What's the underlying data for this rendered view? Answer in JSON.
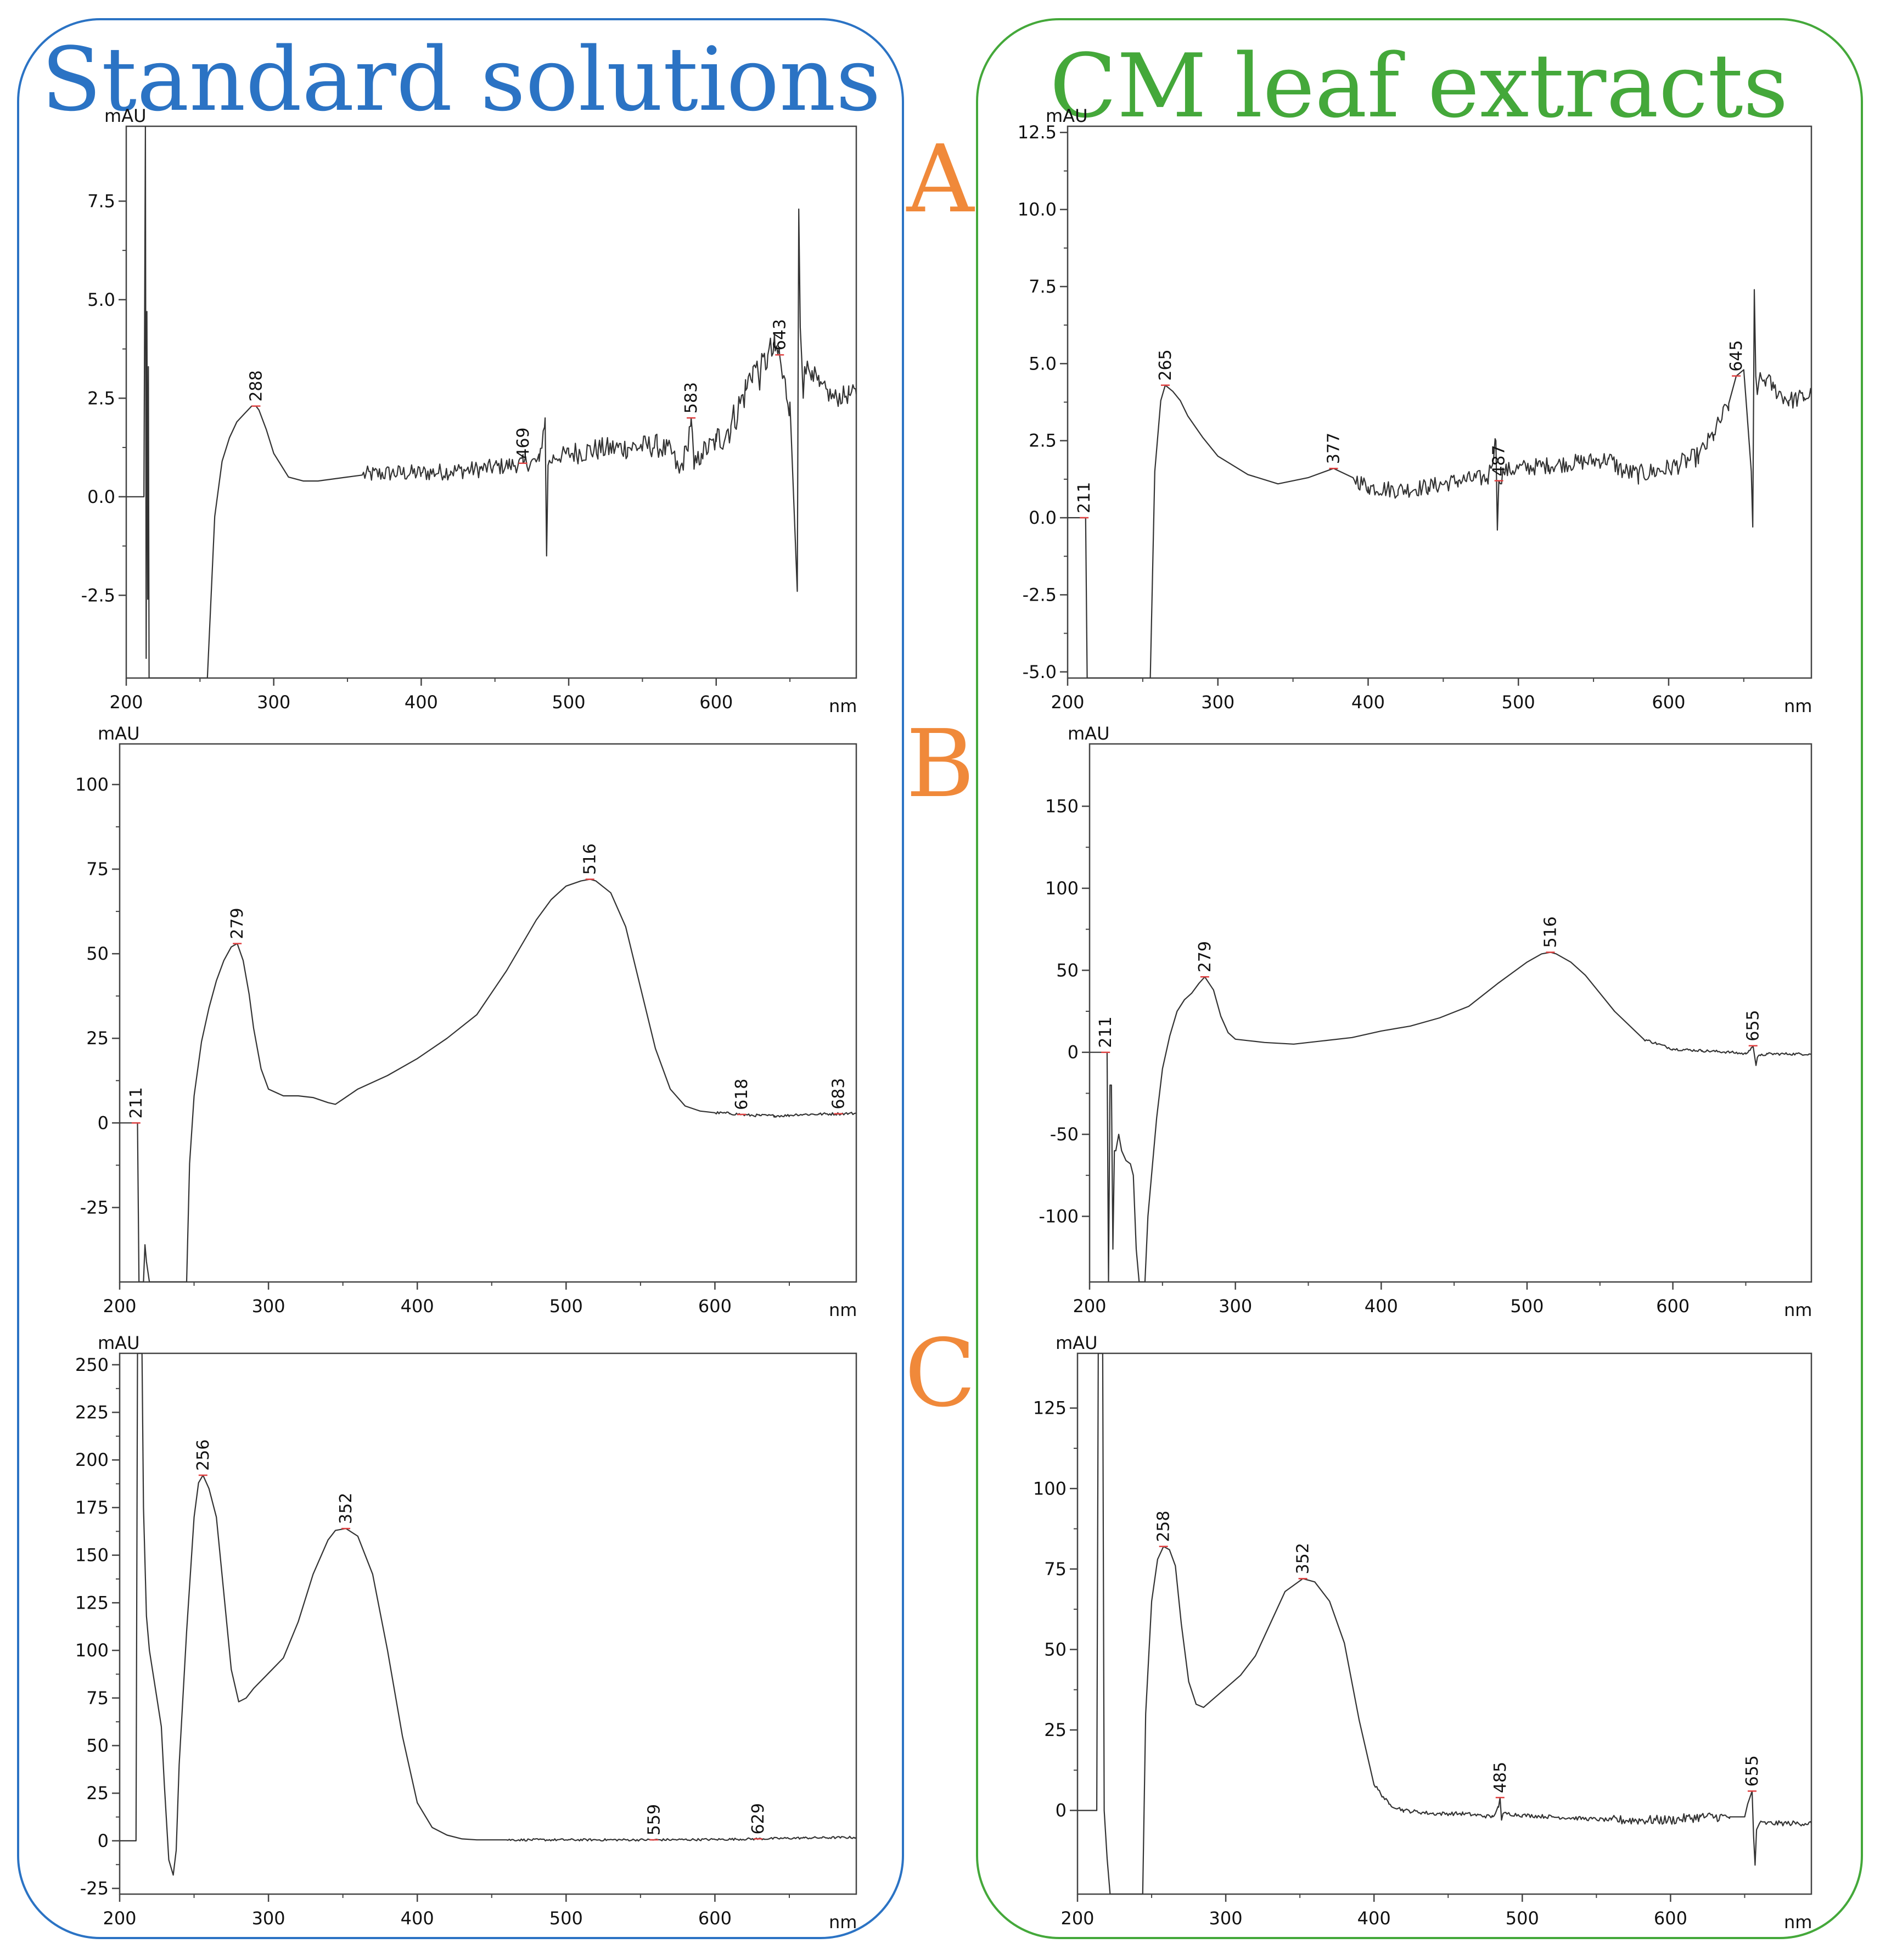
{
  "groups": {
    "left": {
      "title": "Standard solutions",
      "color": "#2b73c4"
    },
    "right": {
      "title": "CM leaf extracts",
      "color": "#44a83a"
    }
  },
  "panel_letters": {
    "items": [
      "A",
      "B",
      "C"
    ],
    "color": "#f0893a"
  },
  "colors": {
    "trace": "#333333",
    "frame": "#444444",
    "baseline_marker": "#e04040"
  },
  "chart_data": [
    {
      "id": "A-left",
      "type": "line",
      "title": "",
      "xlabel": "nm",
      "ylabel": "mAU",
      "xlim": [
        200,
        695
      ],
      "ylim": [
        -4.6,
        9.4
      ],
      "xticks": [
        200,
        300,
        400,
        500,
        600
      ],
      "yticks": [
        -2.5,
        0.0,
        2.5,
        5.0,
        7.5
      ],
      "ytick_decimals": 1,
      "series": [
        {
          "name": "spectrum",
          "x": [
            200,
            212,
            213,
            213.5,
            214,
            214.6,
            215,
            215.5,
            216,
            216.5,
            217,
            220,
            240,
            255,
            260,
            265,
            270,
            275,
            280,
            285,
            288,
            290,
            295,
            300,
            310,
            320,
            330,
            340,
            350,
            360,
            380,
            400,
            420,
            440,
            460,
            469,
            480,
            484,
            485,
            486,
            490,
            500,
            520,
            540,
            560,
            570,
            575,
            580,
            583,
            585,
            590,
            600,
            610,
            620,
            625,
            630,
            635,
            640,
            643,
            645,
            650,
            655,
            656,
            657,
            658,
            659,
            660,
            665,
            670,
            680,
            690,
            695
          ],
          "y": [
            0,
            0,
            9.4,
            -4.1,
            4.7,
            -2.6,
            3.3,
            -4.6,
            -4.6,
            -4.6,
            -4.6,
            -4.6,
            -4.6,
            -4.6,
            -0.5,
            0.9,
            1.5,
            1.9,
            2.1,
            2.3,
            2.3,
            2.2,
            1.7,
            1.1,
            0.5,
            0.4,
            0.4,
            0.45,
            0.5,
            0.55,
            0.6,
            0.6,
            0.65,
            0.7,
            0.8,
            0.85,
            0.9,
            2.0,
            -1.5,
            0.8,
            1.0,
            1.1,
            1.2,
            1.25,
            1.3,
            1.1,
            0.6,
            1.2,
            2.0,
            0.7,
            1.1,
            1.4,
            1.8,
            2.7,
            3.3,
            3.1,
            3.6,
            3.7,
            3.6,
            3.0,
            2.4,
            -2.4,
            7.3,
            4.3,
            3.5,
            2.5,
            3.3,
            3.2,
            2.8,
            2.5,
            2.6,
            2.6
          ]
        }
      ],
      "noise": [
        {
          "from": 360,
          "to": 500,
          "amp": 0.22
        },
        {
          "from": 500,
          "to": 600,
          "amp": 0.3
        },
        {
          "from": 560,
          "to": 650,
          "amp": 0.45
        },
        {
          "from": 660,
          "to": 695,
          "amp": 0.25
        }
      ],
      "peak_labels": [
        {
          "x": 288,
          "y": 2.3,
          "text": "288"
        },
        {
          "x": 469,
          "y": 0.85,
          "text": "469"
        },
        {
          "x": 583,
          "y": 2.0,
          "text": "583"
        },
        {
          "x": 643,
          "y": 3.6,
          "text": "643"
        }
      ]
    },
    {
      "id": "A-right",
      "type": "line",
      "title": "",
      "xlabel": "nm",
      "ylabel": "mAU",
      "xlim": [
        200,
        695
      ],
      "ylim": [
        -5.2,
        12.7
      ],
      "xticks": [
        200,
        300,
        400,
        500,
        600
      ],
      "yticks": [
        -5.0,
        -2.5,
        0.0,
        2.5,
        5.0,
        7.5,
        10.0,
        12.5
      ],
      "ytick_decimals": 1,
      "series": [
        {
          "name": "spectrum",
          "x": [
            200,
            211,
            212,
            213,
            214,
            230,
            250,
            255,
            258,
            262,
            265,
            270,
            275,
            280,
            290,
            300,
            320,
            340,
            360,
            377,
            390,
            400,
            420,
            440,
            460,
            480,
            485,
            486,
            487,
            490,
            500,
            520,
            540,
            560,
            570,
            580,
            600,
            620,
            630,
            640,
            645,
            650,
            652,
            655,
            656,
            657,
            658,
            659,
            660,
            665,
            670,
            680,
            690,
            695
          ],
          "y": [
            0,
            0,
            0,
            -5.2,
            -5.2,
            -5.2,
            -5.2,
            -5.2,
            1.5,
            3.8,
            4.3,
            4.1,
            3.8,
            3.3,
            2.6,
            2.0,
            1.4,
            1.1,
            1.3,
            1.6,
            1.3,
            1.0,
            0.9,
            1.0,
            1.2,
            1.3,
            2.5,
            -0.4,
            1.2,
            1.5,
            1.6,
            1.7,
            1.8,
            1.9,
            1.5,
            1.4,
            1.6,
            2.0,
            2.7,
            3.7,
            4.6,
            4.8,
            3.5,
            1.5,
            -0.3,
            7.4,
            4.6,
            4.0,
            4.4,
            4.5,
            4.2,
            3.8,
            3.9,
            4.0
          ]
        }
      ],
      "noise": [
        {
          "from": 380,
          "to": 560,
          "amp": 0.28
        },
        {
          "from": 560,
          "to": 640,
          "amp": 0.32
        },
        {
          "from": 660,
          "to": 695,
          "amp": 0.3
        }
      ],
      "peak_labels": [
        {
          "x": 211,
          "y": 0.0,
          "text": "211"
        },
        {
          "x": 265,
          "y": 4.3,
          "text": "265"
        },
        {
          "x": 377,
          "y": 1.6,
          "text": "377"
        },
        {
          "x": 487,
          "y": 1.2,
          "text": "487"
        },
        {
          "x": 645,
          "y": 4.6,
          "text": "645"
        }
      ]
    },
    {
      "id": "B-left",
      "type": "line",
      "title": "",
      "xlabel": "nm",
      "ylabel": "mAU",
      "xlim": [
        200,
        695
      ],
      "ylim": [
        -47,
        112
      ],
      "xticks": [
        200,
        300,
        400,
        500,
        600
      ],
      "yticks": [
        -25,
        0,
        25,
        50,
        75,
        100
      ],
      "ytick_decimals": 0,
      "series": [
        {
          "name": "spectrum",
          "x": [
            200,
            211,
            212,
            213,
            214,
            215,
            216,
            217,
            218,
            220,
            225,
            245,
            247,
            250,
            255,
            260,
            265,
            270,
            275,
            279,
            283,
            287,
            290,
            295,
            300,
            310,
            320,
            330,
            340,
            345,
            350,
            360,
            380,
            400,
            420,
            440,
            460,
            480,
            490,
            500,
            510,
            516,
            520,
            530,
            540,
            550,
            560,
            570,
            580,
            590,
            600,
            610,
            618,
            620,
            630,
            640,
            650,
            655,
            660,
            670,
            683,
            690,
            695
          ],
          "y": [
            0,
            0,
            0,
            -47,
            -47,
            -47,
            -47,
            -36,
            -41,
            -47,
            -47,
            -47,
            -12,
            8,
            24,
            34,
            42,
            48,
            52,
            53,
            48,
            38,
            28,
            16,
            10,
            8,
            8,
            7.5,
            6,
            5.5,
            7,
            10,
            14,
            19,
            25,
            32,
            45,
            60,
            66,
            70,
            71.5,
            72,
            71.5,
            68,
            58,
            40,
            22,
            10,
            5,
            3.5,
            3,
            2.8,
            2.5,
            2.3,
            2.2,
            2.1,
            2.2,
            2.5,
            2.5,
            2.6,
            2.7,
            2.8,
            2.8
          ]
        }
      ],
      "noise": [
        {
          "from": 600,
          "to": 695,
          "amp": 0.4
        }
      ],
      "peak_labels": [
        {
          "x": 211,
          "y": 0,
          "text": "211"
        },
        {
          "x": 279,
          "y": 53,
          "text": "279"
        },
        {
          "x": 516,
          "y": 72,
          "text": "516"
        },
        {
          "x": 618,
          "y": 2.5,
          "text": "618"
        },
        {
          "x": 683,
          "y": 2.7,
          "text": "683"
        }
      ]
    },
    {
      "id": "B-right",
      "type": "line",
      "title": "",
      "xlabel": "nm",
      "ylabel": "mAU",
      "xlim": [
        200,
        695
      ],
      "ylim": [
        -140,
        188
      ],
      "xticks": [
        200,
        300,
        400,
        500,
        600
      ],
      "yticks": [
        -100,
        -50,
        0,
        50,
        100,
        150
      ],
      "ytick_decimals": 0,
      "series": [
        {
          "name": "spectrum",
          "x": [
            200,
            211,
            212,
            213,
            214,
            215,
            216,
            217,
            218,
            220,
            222,
            225,
            228,
            230,
            232,
            234,
            236,
            238,
            240,
            243,
            246,
            250,
            255,
            260,
            265,
            270,
            275,
            279,
            285,
            290,
            295,
            300,
            310,
            320,
            340,
            360,
            380,
            400,
            420,
            440,
            460,
            480,
            500,
            510,
            516,
            520,
            530,
            540,
            560,
            580,
            600,
            620,
            640,
            650,
            652,
            655,
            656,
            657,
            658,
            660,
            665,
            680,
            695
          ],
          "y": [
            0,
            0,
            0,
            -140,
            -20,
            -20,
            -120,
            -60,
            -60,
            -50,
            -60,
            -66,
            -68,
            -75,
            -120,
            -140,
            -140,
            -140,
            -100,
            -70,
            -40,
            -10,
            10,
            25,
            32,
            36,
            42,
            46,
            38,
            22,
            12,
            8,
            7,
            6,
            5,
            7,
            9,
            13,
            16,
            21,
            28,
            42,
            55,
            60,
            61,
            60,
            55,
            47,
            25,
            8,
            2,
            1,
            0,
            -1,
            1,
            4,
            -2,
            -8,
            -3,
            -2,
            -1,
            -1,
            -1
          ]
        }
      ],
      "noise": [
        {
          "from": 580,
          "to": 695,
          "amp": 0.8
        }
      ],
      "peak_labels": [
        {
          "x": 211,
          "y": 0,
          "text": "211"
        },
        {
          "x": 279,
          "y": 46,
          "text": "279"
        },
        {
          "x": 516,
          "y": 61,
          "text": "516"
        },
        {
          "x": 655,
          "y": 4,
          "text": "655"
        }
      ]
    },
    {
      "id": "C-left",
      "type": "line",
      "title": "",
      "xlabel": "nm",
      "ylabel": "mAU",
      "xlim": [
        200,
        695
      ],
      "ylim": [
        -28,
        256
      ],
      "xticks": [
        200,
        300,
        400,
        500,
        600
      ],
      "yticks": [
        -25,
        0,
        25,
        50,
        75,
        100,
        125,
        150,
        175,
        200,
        225,
        250
      ],
      "ytick_decimals": 0,
      "series": [
        {
          "name": "spectrum",
          "x": [
            200,
            211,
            212,
            213,
            214,
            215,
            216,
            218,
            220,
            225,
            228,
            230,
            233,
            236,
            238,
            240,
            245,
            250,
            253,
            256,
            260,
            265,
            270,
            275,
            280,
            285,
            290,
            300,
            310,
            320,
            330,
            340,
            345,
            352,
            360,
            370,
            380,
            390,
            400,
            410,
            420,
            430,
            440,
            460,
            500,
            559,
            600,
            629,
            660,
            695
          ],
          "y": [
            0,
            0,
            256,
            256,
            256,
            256,
            175,
            118,
            100,
            75,
            60,
            30,
            -10,
            -18,
            -5,
            40,
            110,
            170,
            188,
            192,
            185,
            170,
            130,
            90,
            73,
            75,
            80,
            88,
            96,
            115,
            140,
            158,
            163,
            164,
            160,
            140,
            100,
            55,
            20,
            7,
            3,
            1,
            0.5,
            0.5,
            0.5,
            0.5,
            0.7,
            1,
            1.5,
            1.8
          ]
        }
      ],
      "noise": [
        {
          "from": 450,
          "to": 695,
          "amp": 0.6
        }
      ],
      "peak_labels": [
        {
          "x": 256,
          "y": 192,
          "text": "256"
        },
        {
          "x": 352,
          "y": 164,
          "text": "352"
        },
        {
          "x": 559,
          "y": 0.5,
          "text": "559"
        },
        {
          "x": 629,
          "y": 1,
          "text": "629"
        }
      ]
    },
    {
      "id": "C-right",
      "type": "line",
      "title": "",
      "xlabel": "nm",
      "ylabel": "mAU",
      "xlim": [
        200,
        695
      ],
      "ylim": [
        -26,
        142
      ],
      "xticks": [
        200,
        300,
        400,
        500,
        600
      ],
      "yticks": [
        0,
        25,
        50,
        75,
        100,
        125
      ],
      "ytick_decimals": 0,
      "series": [
        {
          "name": "spectrum",
          "x": [
            200,
            213,
            214,
            215,
            216,
            217,
            218,
            220,
            222,
            225,
            228,
            230,
            235,
            240,
            244,
            246,
            250,
            254,
            258,
            262,
            266,
            270,
            275,
            280,
            285,
            290,
            300,
            310,
            320,
            330,
            340,
            352,
            360,
            370,
            380,
            390,
            400,
            410,
            420,
            440,
            460,
            480,
            484,
            485,
            486,
            487,
            490,
            500,
            520,
            540,
            560,
            580,
            600,
            620,
            640,
            650,
            652,
            655,
            656,
            657,
            658,
            660,
            665,
            680,
            695
          ],
          "y": [
            0,
            0,
            142,
            142,
            142,
            142,
            0,
            -15,
            -26,
            -26,
            -26,
            -26,
            -26,
            -26,
            -26,
            30,
            65,
            78,
            82,
            81,
            76,
            58,
            40,
            33,
            32,
            34,
            38,
            42,
            48,
            58,
            68,
            72,
            71,
            65,
            52,
            28,
            8,
            2,
            0,
            -1,
            -1,
            -2,
            1,
            4,
            -3,
            -1,
            -1,
            -1.5,
            -2,
            -2.5,
            -3,
            -3,
            -3,
            -2,
            -2,
            -2,
            2,
            6,
            -8,
            -17,
            -6,
            -4,
            -4,
            -4,
            -4
          ]
        }
      ],
      "noise": [
        {
          "from": 400,
          "to": 560,
          "amp": 0.6
        },
        {
          "from": 560,
          "to": 640,
          "amp": 1.5
        },
        {
          "from": 660,
          "to": 695,
          "amp": 0.8
        }
      ],
      "peak_labels": [
        {
          "x": 258,
          "y": 82,
          "text": "258"
        },
        {
          "x": 352,
          "y": 72,
          "text": "352"
        },
        {
          "x": 485,
          "y": 4,
          "text": "485"
        },
        {
          "x": 655,
          "y": 6,
          "text": "655"
        }
      ]
    }
  ]
}
